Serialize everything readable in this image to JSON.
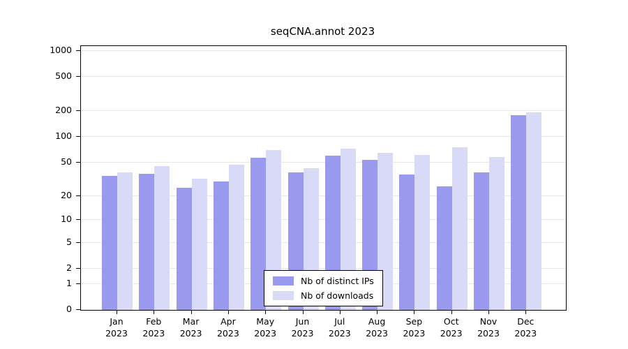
{
  "chart_data": {
    "type": "bar",
    "title": "seqCNA.annot 2023",
    "categories": [
      "Jan 2023",
      "Feb 2023",
      "Mar 2023",
      "Apr 2023",
      "May 2023",
      "Jun 2023",
      "Jul 2023",
      "Aug 2023",
      "Sep 2023",
      "Oct 2023",
      "Nov 2023",
      "Dec 2023"
    ],
    "series": [
      {
        "name": "Nb of distinct IPs",
        "color": "#9999ee",
        "values": [
          35,
          37,
          25,
          30,
          57,
          38,
          60,
          54,
          36,
          26,
          38,
          180
        ]
      },
      {
        "name": "Nb of downloads",
        "color": "#d9d9f8",
        "values": [
          38,
          45,
          32,
          47,
          70,
          43,
          73,
          65,
          62,
          75,
          58,
          192
        ]
      }
    ],
    "yticks": [
      0,
      1,
      2,
      5,
      10,
      20,
      50,
      100,
      200,
      500,
      1000
    ],
    "yscale": "log10(value+1)",
    "ylim": [
      0,
      1000
    ],
    "grid": true,
    "legend_position": "bottom-center"
  }
}
